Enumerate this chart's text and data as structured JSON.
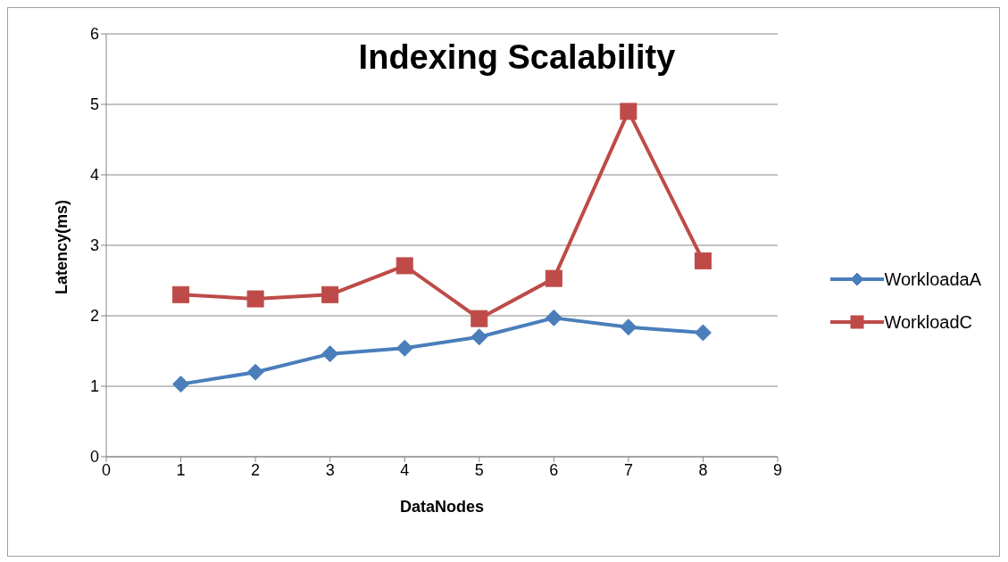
{
  "chart_data": {
    "type": "line",
    "title": "Indexing Scalability",
    "xlabel": "DataNodes",
    "ylabel": "Latency(ms)",
    "x": [
      1,
      2,
      3,
      4,
      5,
      6,
      7,
      8
    ],
    "series": [
      {
        "name": "WorkloadaA",
        "color": "#4a7ebb",
        "marker": "diamond",
        "values": [
          1.03,
          1.2,
          1.46,
          1.54,
          1.7,
          1.97,
          1.84,
          1.76
        ]
      },
      {
        "name": "WorkloadC",
        "color": "#be4b48",
        "marker": "square",
        "values": [
          2.3,
          2.24,
          2.3,
          2.71,
          1.96,
          2.53,
          4.9,
          2.78
        ]
      }
    ],
    "xlim": [
      0,
      9
    ],
    "xticks": [
      0,
      1,
      2,
      3,
      4,
      5,
      6,
      7,
      8,
      9
    ],
    "ylim": [
      0,
      6
    ],
    "yticks": [
      0,
      1,
      2,
      3,
      4,
      5,
      6
    ],
    "grid": "y",
    "legend": "right",
    "line_style": "solid"
  }
}
